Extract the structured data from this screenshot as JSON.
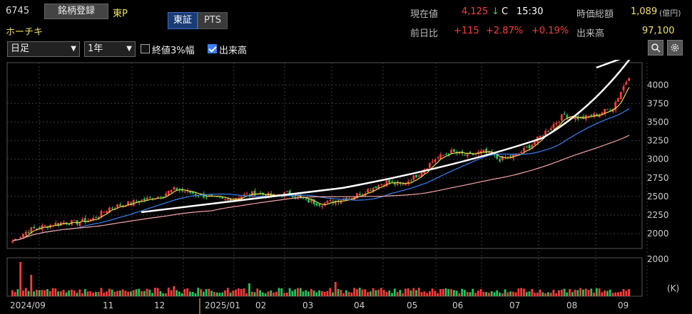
{
  "header": {
    "code": "6745",
    "register_label": "銘柄登録",
    "market": "東P",
    "name": "ホーチキ",
    "exchange_tabs": [
      "東証",
      "PTS"
    ]
  },
  "quote": {
    "price_label": "現在値",
    "price": "4,125",
    "price_arrow": "↓",
    "price_flag": "C",
    "time": "15:30",
    "market_cap_label": "時価総額",
    "market_cap": "1,089",
    "market_cap_unit": "(億円)",
    "change_label": "前日比",
    "change": "+115",
    "change_pct": "+2.87%",
    "change_pct2": "+0.19%",
    "volume_label": "出来高",
    "volume": "97,100"
  },
  "controls": {
    "period_select": "日足",
    "range_select": "1年",
    "checkbox1_label": "終値3%幅",
    "checkbox1_checked": false,
    "checkbox2_label": "出来高",
    "checkbox2_checked": true,
    "zoom_icon": "zoom-icon",
    "settings_icon": "gear-icon"
  },
  "colors": {
    "up": "#ff3b3b",
    "down": "#22c55e",
    "ma_short": "#e7d84a",
    "ma_mid": "#3b82f6",
    "ma_long": "#f4a5a5",
    "trend": "#ffffff"
  },
  "chart_data": {
    "type": "candlestick",
    "x_tick_labels": [
      "2024/09",
      "11",
      "12",
      "2025/01",
      "02",
      "03",
      "04",
      "05",
      "06",
      "07",
      "08",
      "09"
    ],
    "y_ticks": [
      2000,
      2250,
      2500,
      2750,
      3000,
      3250,
      3500,
      3750,
      4000
    ],
    "ylim": [
      1800,
      4300
    ],
    "volume_axis_label": "2000",
    "volume_unit": "(K)",
    "close_series": [
      1900,
      2050,
      2100,
      2150,
      2150,
      2200,
      2350,
      2400,
      2450,
      2500,
      2600,
      2550,
      2500,
      2450,
      2500,
      2550,
      2500,
      2550,
      2450,
      2400,
      2450,
      2500,
      2600,
      2700,
      2650,
      2800,
      3000,
      3100,
      3050,
      3100,
      3000,
      3050,
      3200,
      3400,
      3600,
      3550,
      3600,
      3700,
      4125
    ]
  }
}
